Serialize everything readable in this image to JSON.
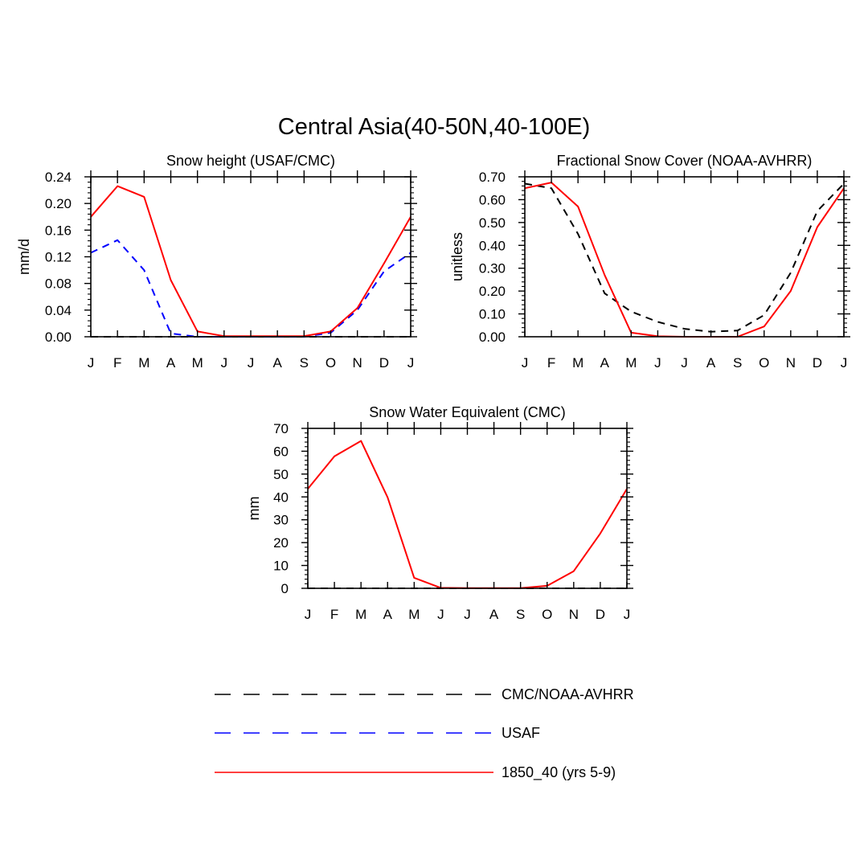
{
  "figure": {
    "title": "Central Asia(40-50N,40-100E)"
  },
  "legend": {
    "items": [
      {
        "label": "CMC/NOAA-AVHRR",
        "color": "#000000",
        "style": "dashed"
      },
      {
        "label": "USAF",
        "color": "#0000ff",
        "style": "dashed"
      },
      {
        "label": "1850_40 (yrs 5-9)",
        "color": "#ff0000",
        "style": "solid"
      }
    ]
  },
  "chart_data": [
    {
      "type": "line",
      "title": "Snow height (USAF/CMC)",
      "xlabel": "",
      "ylabel": "mm/d",
      "categories": [
        "J",
        "F",
        "M",
        "A",
        "M",
        "J",
        "J",
        "A",
        "S",
        "O",
        "N",
        "D",
        "J"
      ],
      "ylim": [
        0,
        0.24
      ],
      "yticks": [
        "0.00",
        "0.04",
        "0.08",
        "0.12",
        "0.16",
        "0.20",
        "0.24"
      ],
      "series": [
        {
          "name": "CMC/NOAA-AVHRR",
          "color": "#000000",
          "dash": "dashed",
          "values": [
            0,
            0,
            0,
            0,
            0,
            0,
            0,
            0,
            0,
            0,
            0,
            0,
            0
          ]
        },
        {
          "name": "USAF",
          "color": "#0000ff",
          "dash": "dashed",
          "values": [
            0.126,
            0.145,
            0.1,
            0.005,
            0,
            0,
            0,
            0,
            0,
            0.006,
            0.04,
            0.098,
            0.126
          ]
        },
        {
          "name": "1850_40 (yrs 5-9)",
          "color": "#ff0000",
          "dash": "solid",
          "values": [
            0.18,
            0.226,
            0.21,
            0.085,
            0.008,
            0.001,
            0.001,
            0.001,
            0.001,
            0.008,
            0.043,
            0.11,
            0.18
          ]
        }
      ]
    },
    {
      "type": "line",
      "title": "Fractional Snow Cover (NOAA-AVHRR)",
      "xlabel": "",
      "ylabel": "unitless",
      "categories": [
        "J",
        "F",
        "M",
        "A",
        "M",
        "J",
        "J",
        "A",
        "S",
        "O",
        "N",
        "D",
        "J"
      ],
      "ylim": [
        0,
        0.7
      ],
      "yticks": [
        "0.00",
        "0.10",
        "0.20",
        "0.30",
        "0.40",
        "0.50",
        "0.60",
        "0.70"
      ],
      "series": [
        {
          "name": "CMC/NOAA-AVHRR",
          "color": "#000000",
          "dash": "dashed",
          "values": [
            0.67,
            0.65,
            0.45,
            0.19,
            0.11,
            0.065,
            0.035,
            0.022,
            0.027,
            0.095,
            0.28,
            0.55,
            0.67
          ]
        },
        {
          "name": "1850_40 (yrs 5-9)",
          "color": "#ff0000",
          "dash": "solid",
          "values": [
            0.65,
            0.675,
            0.57,
            0.27,
            0.018,
            0.002,
            0.0,
            0.0,
            0.0,
            0.045,
            0.2,
            0.48,
            0.65
          ]
        }
      ]
    },
    {
      "type": "line",
      "title": "Snow Water Equivalent (CMC)",
      "xlabel": "",
      "ylabel": "mm",
      "categories": [
        "J",
        "F",
        "M",
        "A",
        "M",
        "J",
        "J",
        "A",
        "S",
        "O",
        "N",
        "D",
        "J"
      ],
      "ylim": [
        0,
        70
      ],
      "yticks": [
        "0",
        "10",
        "20",
        "30",
        "40",
        "50",
        "60",
        "70"
      ],
      "series": [
        {
          "name": "CMC/NOAA-AVHRR",
          "color": "#000000",
          "dash": "dashed",
          "values": [
            0,
            0,
            0,
            0,
            0,
            0,
            0,
            0,
            0,
            0,
            0,
            0,
            0
          ]
        },
        {
          "name": "1850_40 (yrs 5-9)",
          "color": "#ff0000",
          "dash": "solid",
          "values": [
            43.5,
            57.8,
            64.5,
            39.8,
            4.6,
            0.2,
            0.1,
            0.1,
            0.1,
            1.1,
            7.5,
            24,
            43.5
          ]
        }
      ]
    }
  ]
}
